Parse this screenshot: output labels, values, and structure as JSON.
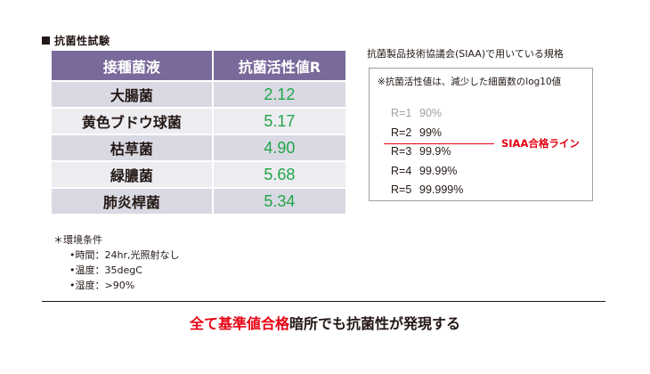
{
  "section_title": "抗菌性試験",
  "table": {
    "headers": [
      "接種菌液",
      "抗菌活性値R"
    ],
    "rows": [
      {
        "bacteria": "大腸菌",
        "value": "2.12"
      },
      {
        "bacteria": "黄色ブドウ球菌",
        "value": "5.17"
      },
      {
        "bacteria": "枯草菌",
        "value": "4.90"
      },
      {
        "bacteria": "緑膿菌",
        "value": "5.68"
      },
      {
        "bacteria": "肺炎桿菌",
        "value": "5.34"
      }
    ]
  },
  "conditions": {
    "heading": "＊環境条件",
    "items": [
      "•時間：24hr,光照射なし",
      "•温度：35degC",
      "•湿度：>90%"
    ]
  },
  "reference": {
    "title": "抗菌製品技術協議会(SIAA)で用いている規格",
    "note": "※抗菌活性値は、減少した細菌数のlog10値",
    "rows": [
      {
        "r": "R=1",
        "pct": "90%"
      },
      {
        "r": "R=2",
        "pct": "99%"
      },
      {
        "r": "R=3",
        "pct": "99.9%"
      },
      {
        "r": "R=4",
        "pct": "99.99%"
      },
      {
        "r": "R=5",
        "pct": "99.999%"
      }
    ],
    "siaa_label": "SIAA合格ライン"
  },
  "conclusion": {
    "highlight": "全て基準値合格",
    "rest": "暗所でも抗菌性が発現する"
  },
  "colors": {
    "header_bg": "#7a6a9b",
    "value_green": "#21a548",
    "accent_red": "#e60012"
  }
}
